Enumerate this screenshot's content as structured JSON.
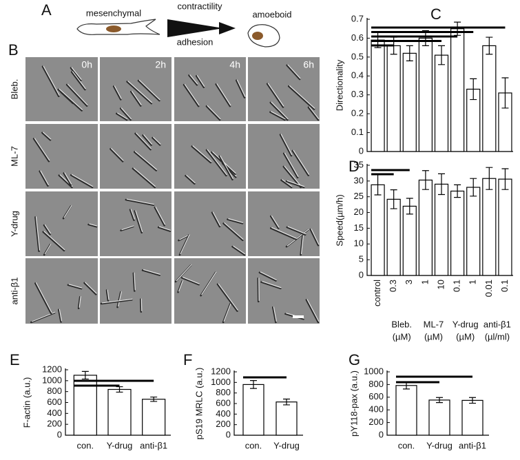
{
  "schematic": {
    "panel": "A",
    "left_state": "mesenchymal",
    "arrow_top": "contractility",
    "arrow_bottom": "adhesion",
    "right_state": "amoeboid"
  },
  "micrographs": {
    "panel": "B",
    "timepoints": [
      "0h",
      "2h",
      "4h",
      "6h"
    ],
    "conditions": [
      "Bleb.",
      "ML-7",
      "Y-drug",
      "anti-β1"
    ]
  },
  "chart_data": [
    {
      "type": "bar",
      "panel": "C",
      "ylabel": "Directionality",
      "values": [
        0.59,
        0.56,
        0.52,
        0.6,
        0.51,
        0.65,
        0.33,
        0.56,
        0.31
      ],
      "errors": [
        0.04,
        0.045,
        0.04,
        0.04,
        0.05,
        0.035,
        0.055,
        0.045,
        0.08
      ],
      "ylim": [
        0,
        0.7
      ],
      "yticks": [
        0,
        0.1,
        0.2,
        0.3,
        0.4,
        0.5,
        0.6,
        0.7
      ],
      "significance": [
        [
          0,
          8
        ],
        [
          0,
          6
        ],
        [
          0,
          5
        ],
        [
          0,
          4
        ],
        [
          0,
          1
        ]
      ]
    },
    {
      "type": "bar",
      "panel": "D",
      "ylabel": "Speed(µm/h)",
      "categories": [
        "control",
        "0.3",
        "3",
        "1",
        "10",
        "0.1",
        "1",
        "0.01",
        "0.1"
      ],
      "groups": [
        {
          "label": "Bleb.",
          "unit": "(µM)",
          "span": [
            1,
            2
          ]
        },
        {
          "label": "ML-7",
          "unit": "(µM)",
          "span": [
            3,
            4
          ]
        },
        {
          "label": "Y-drug",
          "unit": "(µM)",
          "span": [
            5,
            6
          ]
        },
        {
          "label": "anti-β1",
          "unit": "(µl/ml)",
          "span": [
            7,
            8
          ]
        }
      ],
      "values": [
        28.8,
        24.2,
        22.0,
        30.3,
        29.0,
        26.8,
        28.0,
        30.8,
        30.6
      ],
      "errors": [
        3.2,
        3.0,
        2.5,
        3.0,
        3.3,
        2.0,
        2.8,
        3.5,
        3.3
      ],
      "ylim": [
        0,
        35
      ],
      "yticks": [
        0,
        5,
        10,
        15,
        20,
        25,
        30,
        35
      ],
      "significance": [
        [
          0,
          2
        ],
        [
          0,
          1
        ]
      ]
    },
    {
      "type": "bar",
      "panel": "E",
      "ylabel": "F-actin (a.u.)",
      "categories": [
        "con.",
        "Y-drug",
        "anti-β1"
      ],
      "values": [
        1100,
        840,
        660
      ],
      "errors": [
        70,
        50,
        40
      ],
      "ylim": [
        0,
        1200
      ],
      "yticks": [
        0,
        200,
        400,
        600,
        800,
        1000,
        1200
      ],
      "significance": [
        [
          0,
          2
        ],
        [
          0,
          1
        ]
      ]
    },
    {
      "type": "bar",
      "panel": "F",
      "ylabel": "pS19 MRLC (a.u.)",
      "categories": [
        "con.",
        "Y-drug"
      ],
      "values": [
        960,
        630
      ],
      "errors": [
        75,
        55
      ],
      "ylim": [
        0,
        1200
      ],
      "yticks": [
        0,
        200,
        400,
        600,
        800,
        1000,
        1200
      ],
      "significance": [
        [
          0,
          1
        ]
      ]
    },
    {
      "type": "bar",
      "panel": "G",
      "ylabel": "pY118-pax (a.u.)",
      "categories": [
        "con.",
        "Y-drug",
        "anti-β1"
      ],
      "values": [
        785,
        555,
        550
      ],
      "errors": [
        55,
        40,
        45
      ],
      "ylim": [
        0,
        1000
      ],
      "yticks": [
        0,
        200,
        400,
        600,
        800,
        1000
      ],
      "significance": [
        [
          0,
          2
        ],
        [
          0,
          1
        ]
      ]
    }
  ]
}
